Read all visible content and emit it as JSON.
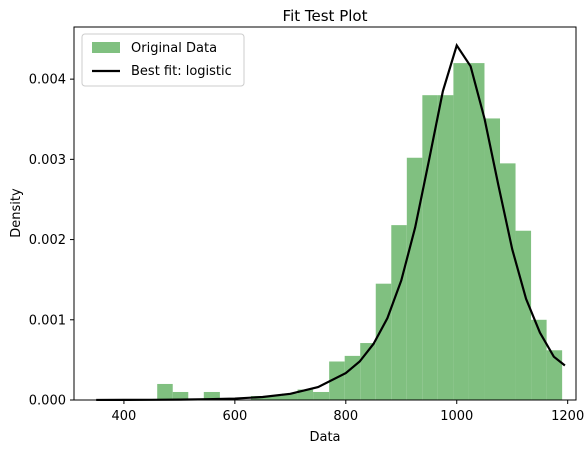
{
  "chart_data": {
    "type": "bar",
    "title": "Fit Test Plot",
    "xlabel": "Data",
    "ylabel": "Density",
    "xlim": [
      310,
      1215
    ],
    "ylim": [
      0,
      0.00465
    ],
    "xticks": [
      400,
      600,
      800,
      1000,
      1200
    ],
    "yticks": [
      0.0,
      0.001,
      0.002,
      0.003,
      0.004
    ],
    "ytick_labels": [
      "0.000",
      "0.001",
      "0.002",
      "0.003",
      "0.004"
    ],
    "xtick_labels": [
      "400",
      "600",
      "800",
      "1000",
      "1200"
    ],
    "legend_position": "top-left",
    "colors": {
      "histogram": "#80c080",
      "fit_line": "#000000"
    },
    "series": [
      {
        "name": "Original Data",
        "type": "histogram",
        "bins": [
          {
            "x0": 460,
            "x1": 488,
            "y": 0.0002
          },
          {
            "x0": 488,
            "x1": 516,
            "y": 0.0001
          },
          {
            "x0": 544,
            "x1": 573,
            "y": 0.0001
          },
          {
            "x0": 573,
            "x1": 601,
            "y": 2e-05
          },
          {
            "x0": 629,
            "x1": 657,
            "y": 5e-05
          },
          {
            "x0": 657,
            "x1": 685,
            "y": 5e-05
          },
          {
            "x0": 685,
            "x1": 713,
            "y": 8e-05
          },
          {
            "x0": 713,
            "x1": 741,
            "y": 0.00013
          },
          {
            "x0": 741,
            "x1": 770,
            "y": 0.0001
          },
          {
            "x0": 770,
            "x1": 798,
            "y": 0.00048
          },
          {
            "x0": 798,
            "x1": 826,
            "y": 0.00055
          },
          {
            "x0": 826,
            "x1": 854,
            "y": 0.00071
          },
          {
            "x0": 854,
            "x1": 882,
            "y": 0.00145
          },
          {
            "x0": 882,
            "x1": 910,
            "y": 0.00218
          },
          {
            "x0": 910,
            "x1": 938,
            "y": 0.00302
          },
          {
            "x0": 938,
            "x1": 966,
            "y": 0.0038
          },
          {
            "x0": 966,
            "x1": 994,
            "y": 0.0038
          },
          {
            "x0": 994,
            "x1": 1022,
            "y": 0.0042
          },
          {
            "x0": 1022,
            "x1": 1050,
            "y": 0.0042
          },
          {
            "x0": 1050,
            "x1": 1078,
            "y": 0.00351
          },
          {
            "x0": 1078,
            "x1": 1106,
            "y": 0.00295
          },
          {
            "x0": 1106,
            "x1": 1134,
            "y": 0.00211
          },
          {
            "x0": 1134,
            "x1": 1162,
            "y": 0.001
          },
          {
            "x0": 1162,
            "x1": 1190,
            "y": 0.00062
          }
        ]
      },
      {
        "name": "Best fit: logistic",
        "type": "line",
        "x": [
          350,
          400,
          450,
          500,
          550,
          600,
          650,
          700,
          750,
          800,
          825,
          850,
          875,
          900,
          925,
          950,
          975,
          1000,
          1025,
          1050,
          1075,
          1100,
          1125,
          1150,
          1175,
          1195
        ],
        "y": [
          6e-07,
          1.1e-06,
          2.1e-06,
          4.3e-06,
          9e-06,
          1.8e-05,
          3.7e-05,
          7.7e-05,
          0.000161,
          0.000336,
          0.00048,
          0.0007,
          0.00102,
          0.00149,
          0.00215,
          0.00299,
          0.00385,
          0.00442,
          0.00416,
          0.00351,
          0.00268,
          0.00188,
          0.00126,
          0.00084,
          0.00054,
          0.00043
        ]
      }
    ]
  }
}
